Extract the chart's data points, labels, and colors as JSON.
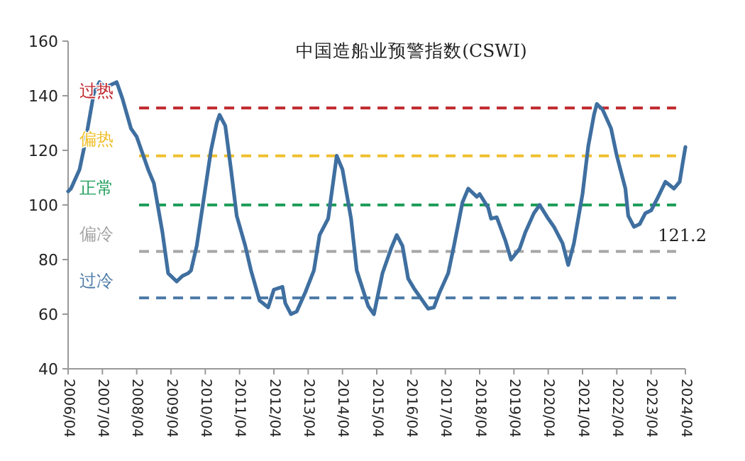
{
  "chart_data": {
    "type": "line",
    "title": "中国造船业预警指数(CSWI)",
    "x": [
      "2006-04",
      "2006-05",
      "2006-08",
      "2006-10",
      "2007-01",
      "2007-03",
      "2007-05",
      "2007-07",
      "2007-09",
      "2007-11",
      "2008-02",
      "2008-04",
      "2008-06",
      "2008-08",
      "2008-10",
      "2009-01",
      "2009-03",
      "2009-06",
      "2009-08",
      "2009-10",
      "2009-11",
      "2010-01",
      "2010-03",
      "2010-06",
      "2010-08",
      "2010-09",
      "2010-11",
      "2011-01",
      "2011-03",
      "2011-06",
      "2011-08",
      "2011-11",
      "2012-02",
      "2012-04",
      "2012-07",
      "2012-08",
      "2012-10",
      "2012-12",
      "2013-03",
      "2013-06",
      "2013-08",
      "2013-11",
      "2014-02",
      "2014-04",
      "2014-07",
      "2014-09",
      "2015-01",
      "2015-03",
      "2015-06",
      "2015-09",
      "2015-11",
      "2016-01",
      "2016-03",
      "2016-05",
      "2016-08",
      "2016-10",
      "2016-12",
      "2017-02",
      "2017-05",
      "2017-07",
      "2017-10",
      "2017-12",
      "2018-03",
      "2018-04",
      "2018-07",
      "2018-08",
      "2018-10",
      "2019-01",
      "2019-03",
      "2019-06",
      "2019-08",
      "2019-11",
      "2020-01",
      "2020-04",
      "2020-06",
      "2020-09",
      "2020-11",
      "2021-01",
      "2021-04",
      "2021-06",
      "2021-08",
      "2021-09",
      "2021-11",
      "2022-02",
      "2022-04",
      "2022-07",
      "2022-08",
      "2022-10",
      "2022-12",
      "2023-02",
      "2023-04",
      "2023-06",
      "2023-09",
      "2023-12",
      "2024-02",
      "2024-03",
      "2024-04"
    ],
    "series": [
      {
        "color": "#3f6fa0",
        "values": [
          105,
          106,
          113,
          123,
          141,
          145,
          143,
          144,
          145,
          139,
          128,
          125,
          119,
          113,
          108,
          90,
          75,
          72,
          74,
          75,
          76,
          85,
          99,
          120,
          130,
          133,
          129,
          113,
          96,
          85,
          76,
          65,
          62.5,
          69,
          70,
          64,
          60,
          61,
          68,
          76,
          89,
          95,
          118,
          113,
          95,
          76,
          63,
          60,
          75,
          84,
          89,
          85,
          73,
          69.5,
          65,
          62,
          62.5,
          68,
          75,
          85,
          101,
          106,
          103,
          104,
          99,
          95,
          95.5,
          87,
          80,
          84,
          90,
          97,
          100,
          95,
          92,
          86,
          78,
          86,
          104,
          121.5,
          133,
          137,
          135,
          128,
          118,
          106,
          96,
          92,
          93,
          97,
          98,
          102,
          108.5,
          106,
          108.5,
          115,
          121.2
        ]
      }
    ],
    "xlim": [
      "2006-04",
      "2024-04"
    ],
    "xticks": [
      {
        "value": "2006-04",
        "label": "2006/04"
      },
      {
        "value": "2007-04",
        "label": "2007/04"
      },
      {
        "value": "2008-04",
        "label": "2008/04"
      },
      {
        "value": "2009-04",
        "label": "2009/04"
      },
      {
        "value": "2010-04",
        "label": "2010/04"
      },
      {
        "value": "2011-04",
        "label": "2011/04"
      },
      {
        "value": "2012-04",
        "label": "2012/04"
      },
      {
        "value": "2013-04",
        "label": "2013/04"
      },
      {
        "value": "2014-04",
        "label": "2014/04"
      },
      {
        "value": "2015-04",
        "label": "2015/04"
      },
      {
        "value": "2016-04",
        "label": "2016/04"
      },
      {
        "value": "2017-04",
        "label": "2017/04"
      },
      {
        "value": "2018-04",
        "label": "2018/04"
      },
      {
        "value": "2019-04",
        "label": "2019/04"
      },
      {
        "value": "2020-04",
        "label": "2020/04"
      },
      {
        "value": "2021-04",
        "label": "2021/04"
      },
      {
        "value": "2022-04",
        "label": "2022/04"
      },
      {
        "value": "2023-04",
        "label": "2023/04"
      },
      {
        "value": "2024-04",
        "label": "2024/04"
      }
    ],
    "ylim": [
      40,
      160
    ],
    "yticks": [
      40,
      60,
      80,
      100,
      120,
      140,
      160
    ],
    "ref_lines": [
      {
        "axis": "y",
        "value": 135.5,
        "label": "过热",
        "color": "#c0282d",
        "line_style": "dashed"
      },
      {
        "axis": "y",
        "value": 118,
        "label": "偏热",
        "color": "#f0c030",
        "line_style": "dashed"
      },
      {
        "axis": "y",
        "value": 100,
        "label": "正常",
        "color": "#1f9e5a",
        "line_style": "dashed"
      },
      {
        "axis": "y",
        "value": 83,
        "label": "偏冷",
        "color": "#a6a6a6",
        "line_style": "dashed"
      },
      {
        "axis": "y",
        "value": 66,
        "label": "过冷",
        "color": "#4f7ca8",
        "line_style": "dashed"
      }
    ],
    "annotations": [
      "121.2"
    ],
    "grid": false,
    "marker": "none",
    "line_style": "solid"
  }
}
